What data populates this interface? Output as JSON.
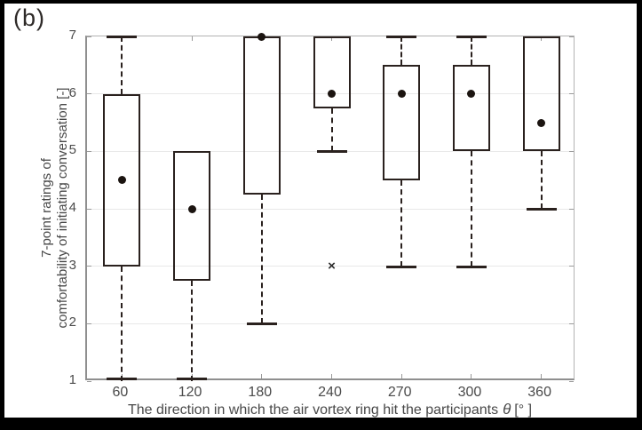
{
  "figure": {
    "panel_label": "(b)",
    "background_color": "#ffffff",
    "frame_color": "#000000"
  },
  "chart_data": {
    "type": "boxplot",
    "title": "",
    "xlabel_prefix": "The direction in which the air vortex ring hit the participants",
    "xlabel_symbol": "θ",
    "xlabel_unit": "[° ]",
    "ylabel_lines": [
      "7-point ratings of",
      "comfortability of initiating conversation [-]"
    ],
    "ylim": [
      1,
      7
    ],
    "yticks": [
      "1",
      "2",
      "3",
      "4",
      "5",
      "6",
      "7"
    ],
    "categories": [
      "60",
      "120",
      "180",
      "240",
      "270",
      "300",
      "360"
    ],
    "grid": "horizontal",
    "legend": null,
    "outlier_marker": "×",
    "dot_marker": "mean-dot",
    "boxes": [
      {
        "category": "60",
        "whisker_low": 1,
        "q1": 3,
        "q3": 6,
        "whisker_high": 7,
        "dot": 4.5,
        "outliers": []
      },
      {
        "category": "120",
        "whisker_low": 1,
        "q1": 2.75,
        "q3": 5,
        "whisker_high": 5,
        "dot": 4,
        "outliers": []
      },
      {
        "category": "180",
        "whisker_low": 2,
        "q1": 4.25,
        "q3": 7,
        "whisker_high": 7,
        "dot": 7,
        "outliers": []
      },
      {
        "category": "240",
        "whisker_low": 5,
        "q1": 5.75,
        "q3": 7,
        "whisker_high": 7,
        "dot": 6,
        "outliers": [
          3
        ]
      },
      {
        "category": "270",
        "whisker_low": 3,
        "q1": 4.5,
        "q3": 6.5,
        "whisker_high": 7,
        "dot": 6,
        "outliers": []
      },
      {
        "category": "300",
        "whisker_low": 3,
        "q1": 5,
        "q3": 6.5,
        "whisker_high": 7,
        "dot": 6,
        "outliers": []
      },
      {
        "category": "360",
        "whisker_low": 4,
        "q1": 5,
        "q3": 7,
        "whisker_high": 7,
        "dot": 5.5,
        "outliers": []
      }
    ],
    "colors": {
      "box_line": "#2a211e",
      "dot": "#1b1410",
      "grid": "#e8e8e8",
      "axis": "#8f8f8f",
      "text": "#4a4a4a"
    }
  }
}
